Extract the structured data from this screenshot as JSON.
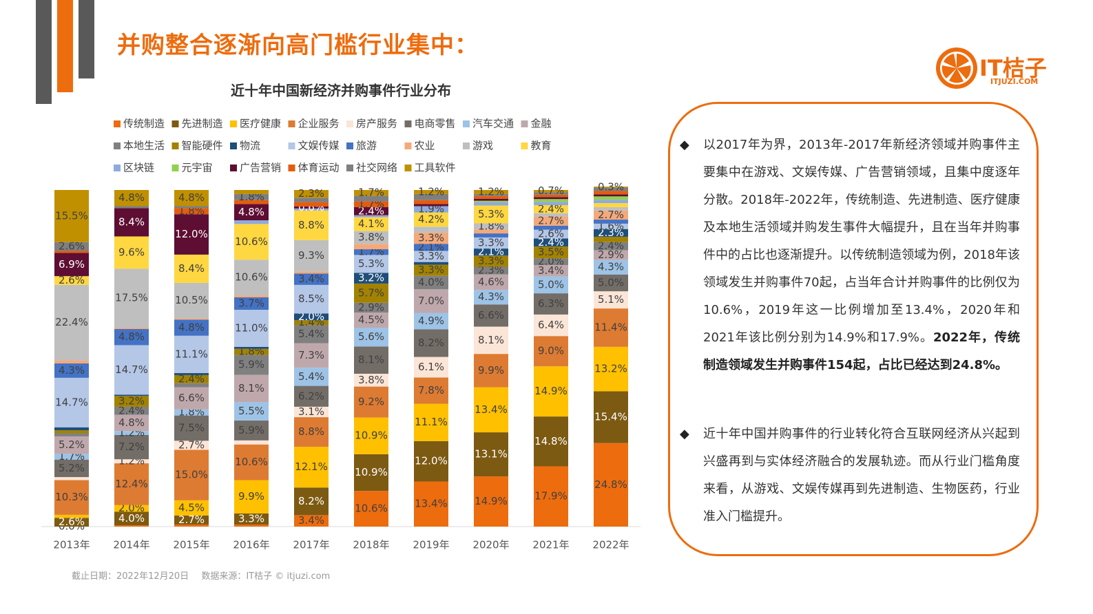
{
  "header": {
    "title": "并购整合逐渐向高门槛行业集中：",
    "logo": "IT桔子",
    "logo_sub": "ITJUZI.COM"
  },
  "chart_data": {
    "type": "stacked-bar",
    "title": "近十年中国新经济并购事件行业分布",
    "categories": [
      "2013年",
      "2014年",
      "2015年",
      "2016年",
      "2017年",
      "2018年",
      "2019年",
      "2020年",
      "2021年",
      "2022年"
    ],
    "ylim": [
      0,
      100
    ],
    "series": [
      {
        "name": "传统制造",
        "color": "#ED6C0E",
        "values": [
          0.0,
          0.4,
          0.6,
          0.6,
          3.4,
          10.6,
          13.4,
          14.9,
          17.9,
          24.8
        ],
        "value_labels": [
          "0.0%",
          null,
          null,
          null,
          "3.4%",
          "10.6%",
          "13.4%",
          "14.9%",
          "17.9%",
          "24.8%"
        ]
      },
      {
        "name": "先进制造",
        "color": "#7C5A12",
        "values": [
          2.6,
          4.0,
          2.7,
          3.3,
          8.2,
          10.9,
          12.0,
          13.1,
          14.8,
          15.4
        ],
        "value_labels": [
          "2.6%",
          "4.0%",
          "2.7%",
          "3.3%",
          "8.2%",
          "10.9%",
          "12.0%",
          "13.1%",
          "14.8%",
          "15.4%"
        ]
      },
      {
        "name": "医疗健康",
        "color": "#FFC000",
        "values": [
          0.9,
          2.0,
          4.5,
          9.9,
          12.1,
          10.9,
          11.1,
          13.4,
          14.9,
          13.2
        ],
        "value_labels": [
          null,
          "2.0%",
          "4.5%",
          "9.9%",
          "12.1%",
          "10.9%",
          "11.1%",
          "13.4%",
          "14.9%",
          "13.2%"
        ]
      },
      {
        "name": "企业服务",
        "color": "#DE7B32",
        "values": [
          10.3,
          12.4,
          15.0,
          10.6,
          8.8,
          9.2,
          7.8,
          9.9,
          9.0,
          11.4
        ],
        "value_labels": [
          "10.3%",
          "12.4%",
          "15.0%",
          "10.6%",
          "8.8%",
          "9.2%",
          "7.8%",
          "9.9%",
          "9.0%",
          "11.4%"
        ]
      },
      {
        "name": "房产服务",
        "color": "#FBE5D6",
        "values": [
          0.9,
          1.2,
          2.7,
          1.2,
          3.1,
          3.8,
          6.1,
          8.1,
          6.4,
          5.1
        ],
        "value_labels": [
          null,
          "1.2%",
          "2.7%",
          null,
          "3.1%",
          "3.8%",
          "6.1%",
          "8.1%",
          "6.4%",
          "5.1%"
        ]
      },
      {
        "name": "电商零售",
        "color": "#736D68",
        "values": [
          5.2,
          7.2,
          7.5,
          5.9,
          6.2,
          8.1,
          8.2,
          6.6,
          6.3,
          5.0
        ],
        "value_labels": [
          "5.2%",
          "7.2%",
          "7.5%",
          "5.9%",
          "6.2%",
          "8.1%",
          "8.2%",
          "6.6%",
          "6.3%",
          "5.0%"
        ]
      },
      {
        "name": "汽车交通",
        "color": "#9DC3E6",
        "values": [
          1.7,
          1.2,
          1.8,
          5.5,
          5.4,
          5.6,
          4.9,
          4.3,
          5.0,
          4.3
        ],
        "value_labels": [
          "1.7%",
          "1.2%",
          "1.8%",
          "5.5%",
          "5.4%",
          "5.6%",
          "4.9%",
          "4.3%",
          "5.0%",
          "4.3%"
        ]
      },
      {
        "name": "金融",
        "color": "#BFA8AC",
        "values": [
          5.2,
          4.8,
          6.6,
          8.1,
          7.3,
          4.5,
          7.0,
          4.6,
          3.4,
          2.9
        ],
        "value_labels": [
          "5.2%",
          "4.8%",
          "6.6%",
          "8.1%",
          "7.3%",
          "4.5%",
          "7.0%",
          "4.6%",
          "3.4%",
          "2.9%"
        ]
      },
      {
        "name": "本地生活",
        "color": "#808080",
        "values": [
          0.9,
          2.4,
          1.2,
          5.9,
          5.4,
          2.9,
          4.0,
          2.3,
          2.0,
          2.4
        ],
        "value_labels": [
          null,
          "2.4%",
          null,
          "5.9%",
          "5.4%",
          "2.9%",
          "4.0%",
          "2.3%",
          "2.0%",
          "2.4%"
        ]
      },
      {
        "name": "智能硬件",
        "color": "#A28200",
        "values": [
          0.9,
          3.2,
          2.4,
          1.8,
          1.4,
          5.7,
          3.3,
          3.3,
          3.5,
          1.6
        ],
        "value_labels": [
          null,
          "3.2%",
          "2.4%",
          "1.8%",
          "1.4%",
          "5.7%",
          "3.3%",
          "3.3%",
          "3.5%",
          null
        ]
      },
      {
        "name": "物流",
        "color": "#1F4E79",
        "values": [
          0.9,
          0.4,
          0.6,
          0.6,
          2.0,
          3.2,
          0.8,
          2.1,
          2.4,
          2.3
        ],
        "value_labels": [
          null,
          null,
          null,
          null,
          "2.0%",
          "3.2%",
          null,
          "2.1%",
          "2.4%",
          "2.3%"
        ]
      },
      {
        "name": "文娱传媒",
        "color": "#B4C7E7",
        "values": [
          14.7,
          14.7,
          11.1,
          11.0,
          8.5,
          5.3,
          3.3,
          3.3,
          2.6,
          1.6
        ],
        "value_labels": [
          "14.7%",
          "14.7%",
          "11.1%",
          "11.0%",
          "8.5%",
          "5.3%",
          "3.3%",
          "3.3%",
          "2.6%",
          "1.6%"
        ]
      },
      {
        "name": "旅游",
        "color": "#4472C4",
        "values": [
          4.3,
          4.8,
          4.8,
          3.7,
          3.4,
          1.7,
          2.1,
          1.2,
          1.2,
          1.2
        ],
        "value_labels": [
          "4.3%",
          "4.8%",
          "4.8%",
          "3.7%",
          "3.4%",
          "1.7%",
          "2.1%",
          null,
          null,
          null
        ]
      },
      {
        "name": "农业",
        "color": "#F4A97A",
        "values": [
          0.9,
          0.4,
          0.4,
          0.6,
          0.6,
          1.6,
          3.3,
          1.2,
          2.7,
          2.7
        ],
        "value_labels": [
          null,
          null,
          null,
          null,
          null,
          null,
          "3.3%",
          null,
          "2.7%",
          "2.7%"
        ]
      },
      {
        "name": "游戏",
        "color": "#BFBFBF",
        "values": [
          22.4,
          17.5,
          10.5,
          10.6,
          9.3,
          3.8,
          1.8,
          1.8,
          1.0,
          1.0
        ],
        "value_labels": [
          "22.4%",
          "17.5%",
          "10.5%",
          "10.6%",
          "9.3%",
          "3.8%",
          null,
          "1.8%",
          null,
          null
        ]
      },
      {
        "name": "教育",
        "color": "#FFD740",
        "values": [
          2.6,
          9.6,
          8.4,
          10.6,
          8.8,
          4.1,
          4.2,
          5.3,
          2.4,
          1.2
        ],
        "value_labels": [
          "2.6%",
          "9.6%",
          "8.4%",
          "10.6%",
          "8.8%",
          "4.1%",
          "4.2%",
          "5.3%",
          "2.4%",
          null
        ]
      },
      {
        "name": "区块链",
        "color": "#8FAADC",
        "values": [
          0,
          0,
          0,
          1.1,
          0.6,
          0.6,
          1.9,
          1.0,
          1.0,
          1.0
        ],
        "value_labels": [
          null,
          null,
          null,
          null,
          null,
          null,
          "1.9%",
          null,
          null,
          null
        ]
      },
      {
        "name": "元宇宙",
        "color": "#92D050",
        "values": [
          0,
          0,
          0,
          0,
          0,
          0,
          0,
          0.4,
          0.8,
          1.0
        ],
        "value_labels": [
          null,
          null,
          null,
          null,
          null,
          null,
          null,
          null,
          null,
          null
        ]
      },
      {
        "name": "广告营销",
        "color": "#5E0E33",
        "values": [
          6.9,
          8.4,
          12.0,
          4.8,
          0.6,
          2.4,
          0.6,
          0.6,
          0.6,
          0.6
        ],
        "value_labels": [
          "6.9%",
          "8.4%",
          "12.0%",
          "4.8%",
          "0.6%",
          "2.4%",
          null,
          null,
          null,
          null
        ]
      },
      {
        "name": "体育运动",
        "color": "#E35D0E",
        "values": [
          0.6,
          0,
          1.8,
          1.2,
          1.3,
          1.7,
          1.2,
          0.8,
          0.7,
          1.0
        ],
        "value_labels": [
          null,
          null,
          "1.8%",
          null,
          null,
          "1.7%",
          null,
          null,
          null,
          null
        ]
      },
      {
        "name": "社交网络",
        "color": "#7F7F7F",
        "values": [
          2.6,
          0.6,
          0.6,
          1.8,
          1.3,
          1.7,
          1.8,
          0.6,
          0.7,
          1.0
        ],
        "value_labels": [
          "2.6%",
          null,
          null,
          "1.8%",
          null,
          null,
          null,
          null,
          null,
          null
        ]
      },
      {
        "name": "工具软件",
        "color": "#C09000",
        "values": [
          15.5,
          4.8,
          4.8,
          1.2,
          2.3,
          1.7,
          1.2,
          1.2,
          0.7,
          0.3
        ],
        "value_labels": [
          "15.5%",
          "4.8%",
          "4.8%",
          null,
          "2.3%",
          "1.7%",
          "1.2%",
          "1.2%",
          "0.7%",
          "0.3%"
        ]
      }
    ]
  },
  "footnote": {
    "date": "截止日期：2022年12月20日",
    "source": "数据来源：IT桔子 © itjuzi.com"
  },
  "notes": [
    {
      "text": "以2017年为界，2013年-2017年新经济领域并购事件主要集中在游戏、文娱传媒、广告营销领域，且集中度逐年分散。2018年-2022年，传统制造、先进制造、医疗健康及本地生活领域并购发生事件大幅提升，且在当年并购事件中的占比也逐渐提升。以传统制造领域为例，2018年该领域发生并购事件70起，占当年合计并购事件的比例仅为10.6%，2019年这一比例增加至13.4%，2020年和2021年该比例分别为14.9%和17.9%。",
      "bold": "2022年，传统制造领域发生并购事件154起，占比已经达到24.8%。"
    },
    {
      "text": "近十年中国并购事件的行业转化符合互联网经济从兴起到兴盛再到与实体经济融合的发展轨迹。而从行业门槛角度来看，从游戏、文娱传媒再到先进制造、生物医药，行业准入门槛提升。"
    }
  ]
}
